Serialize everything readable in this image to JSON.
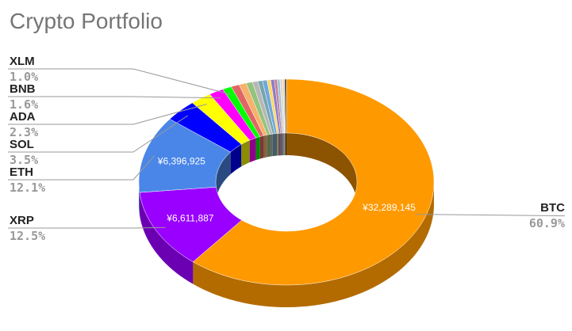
{
  "chart_data": {
    "type": "pie",
    "style": "3d-donut",
    "title": "Crypto Portfolio",
    "categories": [
      "BTC",
      "XRP",
      "ETH",
      "SOL",
      "ADA",
      "BNB",
      "XLM",
      null,
      null,
      null,
      null,
      null,
      null,
      null,
      null,
      null,
      null,
      null,
      null,
      null
    ],
    "values": [
      60.9,
      12.5,
      12.1,
      3.5,
      2.3,
      1.6,
      1.0,
      0.9,
      0.8,
      0.7,
      0.6,
      0.5,
      0.5,
      0.4,
      0.4,
      0.3,
      0.3,
      0.3,
      0.2,
      0.2
    ],
    "value_labels": [
      "60.9%",
      "12.5%",
      "12.1%",
      "3.5%",
      "2.3%",
      "1.6%",
      "1.0%",
      null,
      null,
      null,
      null,
      null,
      null,
      null,
      null,
      null,
      null,
      null,
      null,
      null
    ],
    "amount_labels": [
      "¥32,289,145",
      "¥6,611,887",
      "¥6,396,925",
      null,
      null,
      null,
      null,
      null,
      null,
      null,
      null,
      null,
      null,
      null,
      null,
      null,
      null,
      null,
      null,
      null
    ],
    "colors": [
      "#ff9900",
      "#9900ff",
      "#4a86e8",
      "#0000ff",
      "#ffff00",
      "#ff00ff",
      "#00ff00",
      "#e06666",
      "#f6b26b",
      "#93c47d",
      "#b7b7b7",
      "#76a5af",
      "#6fa8dc",
      "#ffd966",
      "#8e7cc3",
      "#c27ba0",
      "#a2c4c9",
      "#d9d9d9",
      "#f9cb9c",
      "#434343"
    ]
  }
}
